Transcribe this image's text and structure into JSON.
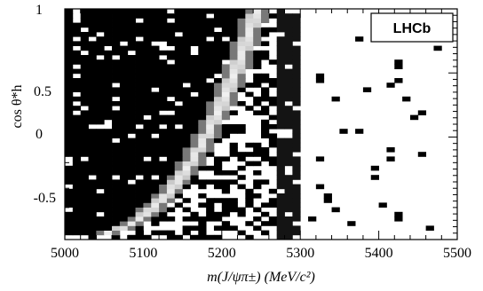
{
  "chart_data": {
    "type": "heatmap",
    "xlabel": "m(J/ψπ±) (MeV/c²)",
    "ylabel": "cos θ*h",
    "xlim": [
      5000,
      5500
    ],
    "ylim": [
      -0.8,
      1.0
    ],
    "x_ticks": [
      "5000",
      "5100",
      "5200",
      "5300",
      "5400",
      "5500"
    ],
    "y_ticks": [
      "1",
      "0.5",
      "0",
      "-0.5"
    ],
    "legend_label": "LHCb",
    "colormap": "grayscale (white = high density, black = low density)",
    "bin_width_mev": 10,
    "bin_height_cos": 0.036,
    "features": [
      {
        "name": "kinematic boundary band",
        "x_range": [
          5000,
          5250
        ],
        "y_range": [
          -0.75,
          1.0
        ],
        "shape": "curve rising from (5000, -0.75) to (5245, 1.0)"
      },
      {
        "name": "dense background region",
        "x_range": [
          5000,
          5290
        ],
        "y_range": [
          -0.8,
          1.0
        ],
        "shape": "filled region left of curve"
      },
      {
        "name": "vertical band",
        "x_range": [
          5275,
          5295
        ],
        "y_range": [
          -0.8,
          1.0
        ]
      },
      {
        "name": "sparse region",
        "x_range": [
          5300,
          5500
        ],
        "y_range": [
          -0.8,
          1.0
        ]
      }
    ],
    "legend_position": "top-right",
    "grid": false
  }
}
